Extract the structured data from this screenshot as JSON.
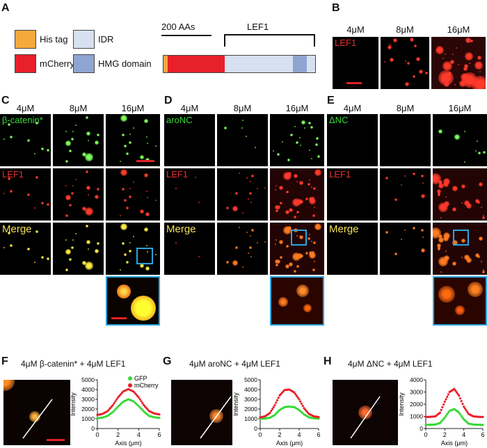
{
  "panel_letters": {
    "a": "A",
    "b": "B",
    "c": "C",
    "d": "D",
    "e": "E",
    "f": "F",
    "g": "G",
    "h": "H"
  },
  "legend": {
    "his_tag": "His tag",
    "mcherry": "mCherry",
    "idr": "IDR",
    "hmg": "HMG domain"
  },
  "colors": {
    "his_tag": "#f5a93a",
    "mcherry": "#e8202a",
    "idr": "#d6e0ef",
    "hmg": "#8ea5d2",
    "frame_blue": "#2aa6df",
    "gfp": "#37d937"
  },
  "construct": {
    "scale_label": "200 AAs",
    "lef1_label": "LEF1"
  },
  "concentrations": [
    "4μM",
    "8μM",
    "16μM"
  ],
  "panel_b": {
    "row_label": "LEF1"
  },
  "panel_c": {
    "green_label": "β-catenin*",
    "red_label": "LEF1",
    "merge_label": "Merge"
  },
  "panel_d": {
    "green_label": "aroNC",
    "red_label": "LEF1",
    "merge_label": "Merge"
  },
  "panel_e": {
    "green_label": "ΔNC",
    "red_label": "LEF1",
    "merge_label": "Merge"
  },
  "panel_f": {
    "title": "4μM β-catenin* + 4μM LEF1"
  },
  "panel_g": {
    "title": "4μM aroNC + 4μM LEF1"
  },
  "panel_h": {
    "title": "4μM ΔNC + 4μM LEF1"
  },
  "chart_data": [
    {
      "type": "scatter",
      "panel": "F",
      "xlabel": "Axis (μm)",
      "ylabel": "Intensity",
      "xlim": [
        0,
        6
      ],
      "ylim": [
        0,
        5000
      ],
      "xticks": [
        0,
        2,
        4,
        6
      ],
      "yticks": [
        0,
        1000,
        2000,
        3000,
        4000,
        5000
      ],
      "legend": "top-right",
      "series": [
        {
          "name": "GFP",
          "color": "#37d937",
          "x": [
            0,
            0.5,
            1,
            1.5,
            2,
            2.5,
            3,
            3.5,
            4,
            4.5,
            5,
            5.5,
            6
          ],
          "y": [
            1050,
            1120,
            1300,
            1700,
            2250,
            2750,
            3000,
            2800,
            2300,
            1750,
            1300,
            1150,
            1100
          ]
        },
        {
          "name": "mCherry",
          "color": "#e8202a",
          "x": [
            0,
            0.5,
            1,
            1.5,
            2,
            2.5,
            3,
            3.5,
            4,
            4.5,
            5,
            5.5,
            6
          ],
          "y": [
            1400,
            1500,
            1800,
            2400,
            3200,
            3800,
            4050,
            3800,
            3200,
            2400,
            1800,
            1550,
            1450
          ]
        }
      ]
    },
    {
      "type": "scatter",
      "panel": "G",
      "xlabel": "Axis (μm)",
      "ylabel": "Intensity",
      "xlim": [
        0,
        6
      ],
      "ylim": [
        0,
        5000
      ],
      "xticks": [
        0,
        2,
        4,
        6
      ],
      "yticks": [
        0,
        1000,
        2000,
        3000,
        4000,
        5000
      ],
      "series": [
        {
          "name": "GFP",
          "color": "#37d937",
          "x": [
            0,
            0.5,
            1,
            1.5,
            2,
            2.5,
            3,
            3.5,
            4,
            4.5,
            5,
            5.5,
            6
          ],
          "y": [
            1000,
            1020,
            1100,
            1400,
            1900,
            2200,
            2250,
            2200,
            1900,
            1450,
            1150,
            1050,
            1020
          ]
        },
        {
          "name": "mCherry",
          "color": "#e8202a",
          "x": [
            0,
            0.5,
            1,
            1.5,
            2,
            2.5,
            3,
            3.5,
            4,
            4.5,
            5,
            5.5,
            6
          ],
          "y": [
            1150,
            1250,
            1600,
            2400,
            3400,
            3950,
            4000,
            3700,
            3000,
            2100,
            1500,
            1250,
            1180
          ]
        }
      ]
    },
    {
      "type": "scatter",
      "panel": "H",
      "xlabel": "Axis (μm)",
      "ylabel": "Intensity",
      "xlim": [
        0,
        6
      ],
      "ylim": [
        0,
        4000
      ],
      "xticks": [
        0,
        2,
        4,
        6
      ],
      "yticks": [
        0,
        1000,
        2000,
        3000,
        4000
      ],
      "series": [
        {
          "name": "GFP",
          "color": "#37d937",
          "x": [
            0,
            0.5,
            1,
            1.5,
            2,
            2.5,
            3,
            3.5,
            4,
            4.5,
            5,
            5.5,
            6
          ],
          "y": [
            300,
            310,
            330,
            450,
            900,
            1450,
            1600,
            1300,
            750,
            400,
            330,
            310,
            300
          ]
        },
        {
          "name": "mCherry",
          "color": "#e8202a",
          "x": [
            0,
            0.5,
            1,
            1.5,
            2,
            2.5,
            3,
            3.5,
            4,
            4.5,
            5,
            5.5,
            6
          ],
          "y": [
            950,
            960,
            1000,
            1300,
            2200,
            3000,
            3250,
            2700,
            1800,
            1200,
            1000,
            960,
            950
          ]
        }
      ]
    }
  ]
}
